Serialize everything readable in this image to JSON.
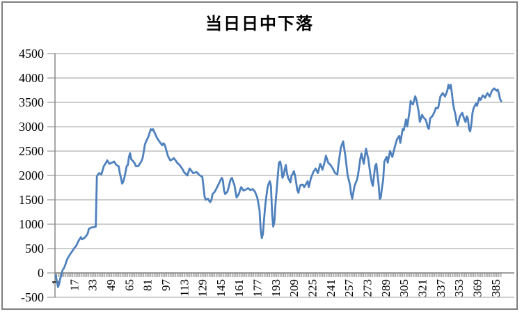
{
  "title": "当日日中下落",
  "colors": {
    "series": "#4F81BD",
    "gridline": "#9c9c9c",
    "axis": "#7f7f7f",
    "tick": "#7f7f7f",
    "text": "#000000",
    "frame_border": "#7f7f7f",
    "background": "#ffffff"
  },
  "chart_data": {
    "type": "line",
    "title": "当日日中下落",
    "xlabel": "",
    "ylabel": "",
    "legend": "none",
    "grid": "horizontal",
    "ylim": [
      -500,
      4500
    ],
    "ytick_interval": 500,
    "ytick_labels": [
      "-500",
      "0",
      "500",
      "1000",
      "1500",
      "2000",
      "2500",
      "3000",
      "3500",
      "4000",
      "4500"
    ],
    "xticks": [
      1,
      17,
      33,
      49,
      65,
      81,
      97,
      113,
      129,
      145,
      161,
      177,
      193,
      209,
      225,
      241,
      257,
      273,
      289,
      305,
      321,
      337,
      353,
      369,
      385
    ],
    "n_points": 390,
    "x_axis_cross": 0,
    "series": [
      {
        "name": "当日日中下落",
        "color": "#4F81BD",
        "points": [
          [
            1,
            -50
          ],
          [
            2,
            -160
          ],
          [
            3,
            -290
          ],
          [
            4,
            -230
          ],
          [
            5,
            -110
          ],
          [
            6,
            -50
          ],
          [
            7,
            60
          ],
          [
            8,
            90
          ],
          [
            9,
            140
          ],
          [
            11,
            280
          ],
          [
            13,
            360
          ],
          [
            15,
            430
          ],
          [
            17,
            500
          ],
          [
            19,
            560
          ],
          [
            21,
            660
          ],
          [
            23,
            735
          ],
          [
            24,
            690
          ],
          [
            26,
            714
          ],
          [
            28,
            770
          ],
          [
            29,
            810
          ],
          [
            30,
            905
          ],
          [
            32,
            929
          ],
          [
            34,
            940
          ],
          [
            36,
            950
          ],
          [
            37,
            1980
          ],
          [
            38,
            2020
          ],
          [
            39,
            2048
          ],
          [
            41,
            2024
          ],
          [
            43,
            2190
          ],
          [
            45,
            2262
          ],
          [
            46,
            2310
          ],
          [
            48,
            2238
          ],
          [
            50,
            2262
          ],
          [
            52,
            2286
          ],
          [
            54,
            2214
          ],
          [
            56,
            2190
          ],
          [
            57,
            2050
          ],
          [
            58,
            1952
          ],
          [
            59,
            1833
          ],
          [
            60,
            1870
          ],
          [
            61,
            1952
          ],
          [
            63,
            2190
          ],
          [
            64,
            2214
          ],
          [
            65,
            2380
          ],
          [
            66,
            2460
          ],
          [
            67,
            2330
          ],
          [
            68,
            2310
          ],
          [
            70,
            2250
          ],
          [
            71,
            2190
          ],
          [
            73,
            2190
          ],
          [
            74,
            2220
          ],
          [
            76,
            2300
          ],
          [
            77,
            2360
          ],
          [
            79,
            2640
          ],
          [
            80,
            2700
          ],
          [
            82,
            2800
          ],
          [
            84,
            2950
          ],
          [
            85,
            2930
          ],
          [
            86,
            2950
          ],
          [
            88,
            2850
          ],
          [
            89,
            2790
          ],
          [
            91,
            2714
          ],
          [
            93,
            2650
          ],
          [
            94,
            2619
          ],
          [
            95,
            2660
          ],
          [
            96,
            2640
          ],
          [
            97,
            2571
          ],
          [
            99,
            2405
          ],
          [
            101,
            2310
          ],
          [
            103,
            2330
          ],
          [
            104,
            2357
          ],
          [
            106,
            2300
          ],
          [
            107,
            2262
          ],
          [
            109,
            2220
          ],
          [
            110,
            2190
          ],
          [
            112,
            2120
          ],
          [
            113,
            2071
          ],
          [
            115,
            2020
          ],
          [
            116,
            2000
          ],
          [
            118,
            2143
          ],
          [
            120,
            2080
          ],
          [
            121,
            2048
          ],
          [
            123,
            2060
          ],
          [
            124,
            2071
          ],
          [
            126,
            2020
          ],
          [
            127,
            2000
          ],
          [
            129,
            1976
          ],
          [
            130,
            1790
          ],
          [
            131,
            1571
          ],
          [
            132,
            1500
          ],
          [
            134,
            1524
          ],
          [
            135,
            1480
          ],
          [
            136,
            1452
          ],
          [
            137,
            1500
          ],
          [
            138,
            1619
          ],
          [
            140,
            1667
          ],
          [
            142,
            1762
          ],
          [
            144,
            1857
          ],
          [
            145,
            1905
          ],
          [
            146,
            1952
          ],
          [
            147,
            1905
          ],
          [
            148,
            1690
          ],
          [
            149,
            1619
          ],
          [
            151,
            1667
          ],
          [
            152,
            1750
          ],
          [
            153,
            1850
          ],
          [
            154,
            1929
          ],
          [
            155,
            1950
          ],
          [
            156,
            1870
          ],
          [
            157,
            1810
          ],
          [
            159,
            1548
          ],
          [
            161,
            1619
          ],
          [
            162,
            1700
          ],
          [
            163,
            1762
          ],
          [
            165,
            1690
          ],
          [
            167,
            1710
          ],
          [
            169,
            1738
          ],
          [
            171,
            1700
          ],
          [
            173,
            1720
          ],
          [
            175,
            1667
          ],
          [
            177,
            1550
          ],
          [
            178,
            1429
          ],
          [
            179,
            1286
          ],
          [
            180,
            900
          ],
          [
            181,
            714
          ],
          [
            182,
            800
          ],
          [
            183,
            1100
          ],
          [
            184,
            1381
          ],
          [
            185,
            1571
          ],
          [
            186,
            1750
          ],
          [
            187,
            1833
          ],
          [
            188,
            1881
          ],
          [
            189,
            1786
          ],
          [
            190,
            1200
          ],
          [
            191,
            952
          ],
          [
            192,
            1050
          ],
          [
            193,
            1429
          ],
          [
            194,
            1700
          ],
          [
            195,
            2000
          ],
          [
            196,
            2262
          ],
          [
            197,
            2286
          ],
          [
            198,
            2190
          ],
          [
            199,
            1952
          ],
          [
            200,
            2000
          ],
          [
            201,
            2119
          ],
          [
            202,
            2214
          ],
          [
            203,
            2048
          ],
          [
            204,
            1950
          ],
          [
            205,
            1905
          ],
          [
            206,
            1857
          ],
          [
            207,
            2000
          ],
          [
            208,
            2030
          ],
          [
            209,
            2090
          ],
          [
            210,
            2000
          ],
          [
            211,
            1857
          ],
          [
            212,
            1700
          ],
          [
            213,
            1643
          ],
          [
            214,
            1750
          ],
          [
            215,
            1810
          ],
          [
            217,
            1810
          ],
          [
            218,
            1760
          ],
          [
            219,
            1800
          ],
          [
            221,
            1881
          ],
          [
            222,
            1762
          ],
          [
            224,
            1952
          ],
          [
            226,
            2071
          ],
          [
            228,
            2143
          ],
          [
            230,
            2048
          ],
          [
            232,
            2238
          ],
          [
            234,
            2119
          ],
          [
            236,
            2286
          ],
          [
            237,
            2405
          ],
          [
            239,
            2262
          ],
          [
            241,
            2214
          ],
          [
            243,
            2143
          ],
          [
            244,
            2095
          ],
          [
            245,
            2048
          ],
          [
            247,
            2024
          ],
          [
            248,
            2238
          ],
          [
            250,
            2571
          ],
          [
            252,
            2700
          ],
          [
            254,
            2405
          ],
          [
            256,
            2000
          ],
          [
            258,
            1810
          ],
          [
            259,
            1619
          ],
          [
            260,
            1524
          ],
          [
            262,
            1786
          ],
          [
            264,
            1905
          ],
          [
            265,
            2000
          ],
          [
            267,
            2333
          ],
          [
            268,
            2452
          ],
          [
            270,
            2238
          ],
          [
            271,
            2381
          ],
          [
            272,
            2548
          ],
          [
            274,
            2333
          ],
          [
            276,
            2000
          ],
          [
            277,
            1857
          ],
          [
            278,
            1786
          ],
          [
            280,
            2190
          ],
          [
            281,
            2238
          ],
          [
            283,
            1810
          ],
          [
            284,
            1520
          ],
          [
            285,
            1550
          ],
          [
            286,
            1762
          ],
          [
            287,
            1900
          ],
          [
            288,
            2286
          ],
          [
            290,
            2381
          ],
          [
            291,
            2262
          ],
          [
            293,
            2500
          ],
          [
            295,
            2381
          ],
          [
            297,
            2571
          ],
          [
            299,
            2738
          ],
          [
            301,
            2810
          ],
          [
            302,
            2667
          ],
          [
            304,
            2950
          ],
          [
            305,
            2929
          ],
          [
            307,
            3148
          ],
          [
            308,
            3005
          ],
          [
            310,
            3314
          ],
          [
            311,
            3529
          ],
          [
            312,
            3481
          ],
          [
            313,
            3457
          ],
          [
            315,
            3624
          ],
          [
            316,
            3552
          ],
          [
            318,
            3314
          ],
          [
            319,
            3100
          ],
          [
            321,
            3243
          ],
          [
            322,
            3195
          ],
          [
            324,
            3148
          ],
          [
            325,
            3076
          ],
          [
            326,
            2981
          ],
          [
            327,
            2957
          ],
          [
            328,
            3171
          ],
          [
            330,
            3219
          ],
          [
            332,
            3314
          ],
          [
            333,
            3386
          ],
          [
            335,
            3381
          ],
          [
            337,
            3619
          ],
          [
            339,
            3690
          ],
          [
            341,
            3619
          ],
          [
            343,
            3738
          ],
          [
            344,
            3860
          ],
          [
            345,
            3786
          ],
          [
            346,
            3857
          ],
          [
            347,
            3690
          ],
          [
            348,
            3476
          ],
          [
            349,
            3357
          ],
          [
            350,
            3262
          ],
          [
            351,
            3119
          ],
          [
            352,
            3024
          ],
          [
            354,
            3214
          ],
          [
            356,
            3286
          ],
          [
            358,
            3143
          ],
          [
            359,
            3095
          ],
          [
            360,
            3214
          ],
          [
            361,
            3167
          ],
          [
            362,
            2952
          ],
          [
            363,
            2905
          ],
          [
            364,
            3048
          ],
          [
            365,
            3286
          ],
          [
            366,
            3381
          ],
          [
            368,
            3476
          ],
          [
            369,
            3429
          ],
          [
            371,
            3595
          ],
          [
            372,
            3548
          ],
          [
            374,
            3643
          ],
          [
            376,
            3595
          ],
          [
            378,
            3690
          ],
          [
            380,
            3619
          ],
          [
            382,
            3738
          ],
          [
            384,
            3786
          ],
          [
            386,
            3738
          ],
          [
            387,
            3762
          ],
          [
            388,
            3690
          ],
          [
            389,
            3571
          ],
          [
            390,
            3524
          ]
        ]
      }
    ]
  }
}
